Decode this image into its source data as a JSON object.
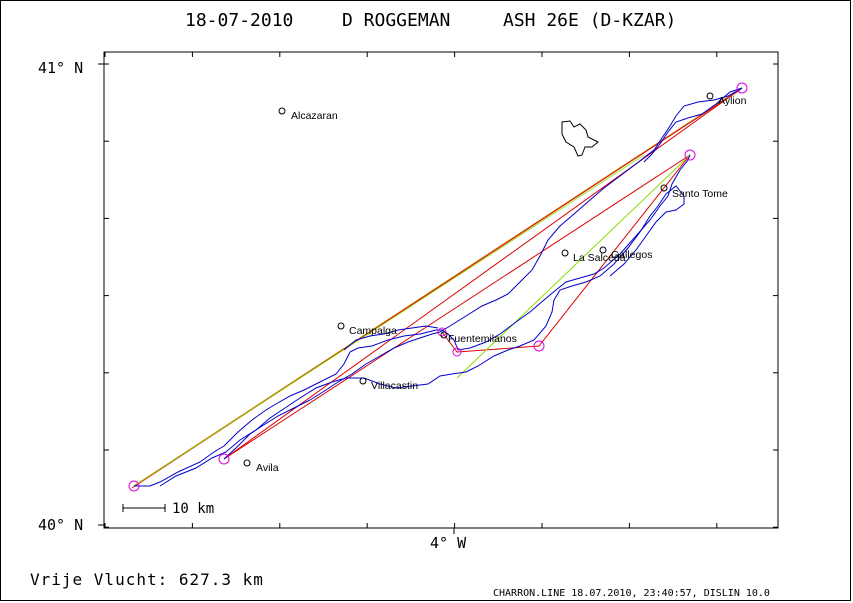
{
  "title": {
    "date": "18-07-2010",
    "pilot": "D ROGGEMAN",
    "glider": "ASH 26E (D-KZAR)"
  },
  "axes": {
    "lat_top": "41° N",
    "lat_bottom": "40° N",
    "lon_label": "4° W"
  },
  "places": [
    {
      "name": "Alcazaran"
    },
    {
      "name": "Aylion"
    },
    {
      "name": "Santo Tome"
    },
    {
      "name": "La Salceda"
    },
    {
      "name": "Gallegos"
    },
    {
      "name": "Campalga"
    },
    {
      "name": "Fuentemilanos"
    },
    {
      "name": "Villacastin"
    },
    {
      "name": "Avila"
    }
  ],
  "scale_bar": {
    "label": "10 km"
  },
  "footer": {
    "distance": "Vrije Vlucht:  627.3 km",
    "credit": "CHARRON.LINE 18.07.2010, 23:40:57, DISLIN 10.0"
  },
  "colors": {
    "track": "#0000cc",
    "leg_red": "#dd0000",
    "leg_orange": "#cc7700",
    "leg_green": "#88dd00",
    "turnpoint": "#dd00dd",
    "axes": "#000000"
  }
}
